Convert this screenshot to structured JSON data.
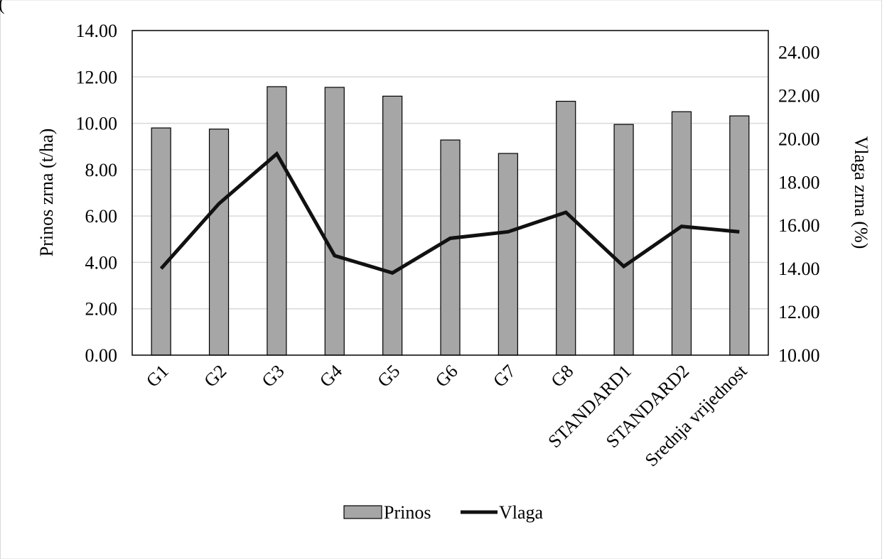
{
  "header_fragment": "(",
  "chart_data": {
    "type": "bar",
    "categories": [
      "G1",
      "G2",
      "G3",
      "G4",
      "G5",
      "G6",
      "G7",
      "G8",
      "STANDARD1",
      "STANDARD2",
      "Srednja vrijednost"
    ],
    "series": [
      {
        "name": "Prinos",
        "type": "bar",
        "axis": "left",
        "color": "#a6a6a6",
        "values": [
          9.8,
          9.75,
          11.58,
          11.55,
          11.17,
          9.28,
          8.7,
          10.95,
          9.95,
          10.5,
          10.32
        ]
      },
      {
        "name": "Vlaga",
        "type": "line",
        "axis": "right",
        "color": "#111111",
        "values": [
          14.0,
          17.0,
          19.3,
          14.6,
          13.8,
          15.4,
          15.7,
          16.6,
          14.1,
          15.95,
          15.7
        ]
      }
    ],
    "ylabel": "Prinos zrna (t/ha)",
    "y2label": "Vlaga zrna (%)",
    "ylim": [
      0,
      14
    ],
    "y2lim": [
      10,
      25
    ],
    "yticks": [
      "0.00",
      "2.00",
      "4.00",
      "6.00",
      "8.00",
      "10.00",
      "12.00",
      "14.00"
    ],
    "y2ticks": [
      "10.00",
      "12.00",
      "14.00",
      "16.00",
      "18.00",
      "20.00",
      "22.00",
      "24.00"
    ],
    "grid": true,
    "legend": "bottom-center"
  }
}
